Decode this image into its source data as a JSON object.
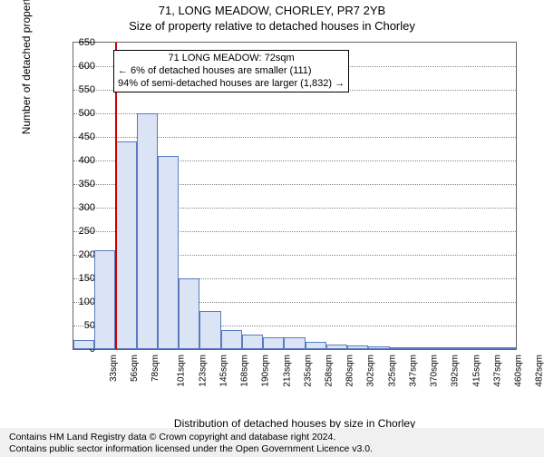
{
  "title_main": "71, LONG MEADOW, CHORLEY, PR7 2YB",
  "title_sub": "Size of property relative to detached houses in Chorley",
  "ylabel": "Number of detached properties",
  "xlabel": "Distribution of detached houses by size in Chorley",
  "chart": {
    "type": "histogram",
    "ylim": [
      0,
      650
    ],
    "ytick_step": 50,
    "bar_fill": "#dbe4f5",
    "bar_border": "#5a7bbf",
    "grid_color": "#888888",
    "background_color": "#ffffff",
    "marker_color": "#d00000",
    "marker_x_index": 2,
    "x_categories": [
      "33sqm",
      "56sqm",
      "78sqm",
      "101sqm",
      "123sqm",
      "145sqm",
      "168sqm",
      "190sqm",
      "213sqm",
      "235sqm",
      "258sqm",
      "280sqm",
      "302sqm",
      "325sqm",
      "347sqm",
      "370sqm",
      "392sqm",
      "415sqm",
      "437sqm",
      "460sqm",
      "482sqm"
    ],
    "values": [
      20,
      210,
      440,
      500,
      410,
      150,
      80,
      40,
      30,
      25,
      25,
      15,
      10,
      8,
      5,
      3,
      0,
      3,
      0,
      2,
      2
    ]
  },
  "annotation": {
    "line1": "71 LONG MEADOW: 72sqm",
    "line2": "← 6% of detached houses are smaller (111)",
    "line3": "94% of semi-detached houses are larger (1,832) →"
  },
  "footer": {
    "line1": "Contains HM Land Registry data © Crown copyright and database right 2024.",
    "line2": "Contains public sector information licensed under the Open Government Licence v3.0."
  }
}
